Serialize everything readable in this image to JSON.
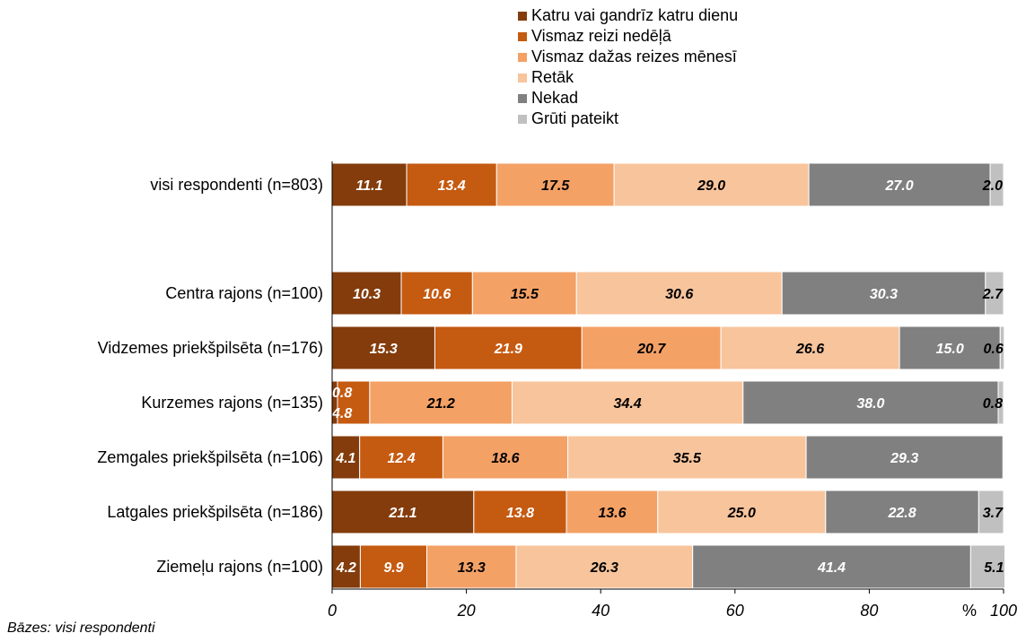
{
  "chart_data": {
    "type": "bar",
    "orientation": "horizontal",
    "stacked": true,
    "categories": [
      "visi respondenti (n=803)",
      "Centra rajons (n=100)",
      "Vidzemes priekšpilsēta (n=176)",
      "Kurzemes rajons (n=135)",
      "Zemgales priekšpilsēta (n=106)",
      "Latgales priekšpilsēta (n=186)",
      "Ziemeļu rajons (n=100)"
    ],
    "series": [
      {
        "name": "Katru vai gandrīz katru dienu",
        "color": "#843C0C",
        "values": [
          11.1,
          10.3,
          15.3,
          0.8,
          4.1,
          21.1,
          4.2
        ]
      },
      {
        "name": "Vismaz reizi nedēļā",
        "color": "#C55A11",
        "values": [
          13.4,
          10.6,
          21.9,
          4.8,
          12.4,
          13.8,
          9.9
        ]
      },
      {
        "name": "Vismaz dažas reizes mēnesī",
        "color": "#F4A166",
        "values": [
          17.5,
          15.5,
          20.7,
          21.2,
          18.6,
          13.6,
          13.3
        ]
      },
      {
        "name": "Retāk",
        "color": "#F8C49C",
        "values": [
          29.0,
          30.6,
          26.6,
          34.4,
          35.5,
          25.0,
          26.3
        ]
      },
      {
        "name": "Nekad",
        "color": "#808080",
        "values": [
          27.0,
          30.3,
          15.0,
          38.0,
          29.3,
          22.8,
          41.4
        ]
      },
      {
        "name": "Grūti pateikt",
        "color": "#C0C0C0",
        "values": [
          2.0,
          2.7,
          0.6,
          0.8,
          null,
          3.7,
          5.1
        ]
      }
    ],
    "xlim": [
      0,
      100
    ],
    "xticks": [
      "0",
      "20",
      "40",
      "60",
      "80",
      "100"
    ],
    "unit_label": "%",
    "legend_position": "top"
  },
  "footnote": "Bāzes: visi respondenti"
}
